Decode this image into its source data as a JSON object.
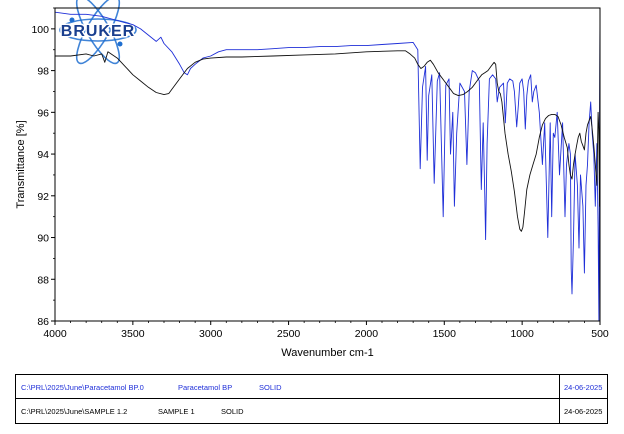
{
  "chart_data": {
    "type": "line",
    "title": "",
    "xlabel": "Wavenumber cm-1",
    "ylabel": "Transmittance [%]",
    "xlim": [
      4000,
      500
    ],
    "ylim": [
      86,
      101
    ],
    "x_ticks": [
      4000,
      3500,
      3000,
      2500,
      2000,
      1500,
      1000,
      500
    ],
    "y_ticks": [
      86,
      88,
      90,
      92,
      94,
      96,
      98,
      100
    ],
    "grid": false,
    "logo": "BRUKER",
    "series": [
      {
        "name": "Paracetamol BP",
        "color": "#1f2fd8",
        "points": [
          [
            4000,
            100.8
          ],
          [
            3900,
            100.7
          ],
          [
            3800,
            100.7
          ],
          [
            3700,
            100.6
          ],
          [
            3600,
            100.4
          ],
          [
            3500,
            100.2
          ],
          [
            3450,
            100.0
          ],
          [
            3400,
            99.7
          ],
          [
            3350,
            99.4
          ],
          [
            3320,
            99.6
          ],
          [
            3300,
            99.3
          ],
          [
            3250,
            98.9
          ],
          [
            3200,
            98.3
          ],
          [
            3170,
            97.9
          ],
          [
            3150,
            97.8
          ],
          [
            3130,
            98.1
          ],
          [
            3100,
            98.3
          ],
          [
            3050,
            98.6
          ],
          [
            3000,
            98.7
          ],
          [
            2950,
            98.9
          ],
          [
            2900,
            99.0
          ],
          [
            2800,
            99.0
          ],
          [
            2700,
            99.0
          ],
          [
            2600,
            99.05
          ],
          [
            2500,
            99.1
          ],
          [
            2400,
            99.1
          ],
          [
            2300,
            99.15
          ],
          [
            2200,
            99.15
          ],
          [
            2100,
            99.2
          ],
          [
            2000,
            99.2
          ],
          [
            1900,
            99.25
          ],
          [
            1800,
            99.3
          ],
          [
            1700,
            99.35
          ],
          [
            1670,
            99.0
          ],
          [
            1655,
            93.3
          ],
          [
            1640,
            97.2
          ],
          [
            1620,
            98.2
          ],
          [
            1610,
            93.7
          ],
          [
            1600,
            96.8
          ],
          [
            1580,
            97.8
          ],
          [
            1565,
            92.6
          ],
          [
            1545,
            97.5
          ],
          [
            1530,
            97.9
          ],
          [
            1507,
            91.0
          ],
          [
            1490,
            97.3
          ],
          [
            1470,
            97.6
          ],
          [
            1460,
            94.0
          ],
          [
            1445,
            96.0
          ],
          [
            1435,
            91.5
          ],
          [
            1420,
            95.0
          ],
          [
            1400,
            97.4
          ],
          [
            1370,
            97.0
          ],
          [
            1355,
            93.5
          ],
          [
            1340,
            97.0
          ],
          [
            1320,
            98.0
          ],
          [
            1300,
            97.9
          ],
          [
            1275,
            97.5
          ],
          [
            1262,
            92.3
          ],
          [
            1250,
            95.5
          ],
          [
            1240,
            92.0
          ],
          [
            1235,
            89.9
          ],
          [
            1225,
            94.5
          ],
          [
            1210,
            97.6
          ],
          [
            1190,
            97.8
          ],
          [
            1170,
            97.6
          ],
          [
            1160,
            96.5
          ],
          [
            1145,
            97.2
          ],
          [
            1120,
            97.4
          ],
          [
            1108,
            95.5
          ],
          [
            1095,
            97.4
          ],
          [
            1080,
            97.6
          ],
          [
            1060,
            97.5
          ],
          [
            1050,
            97.0
          ],
          [
            1035,
            95.3
          ],
          [
            1025,
            96.3
          ],
          [
            1015,
            97.4
          ],
          [
            1000,
            97.6
          ],
          [
            990,
            97.0
          ],
          [
            980,
            95.2
          ],
          [
            970,
            96.8
          ],
          [
            960,
            97.5
          ],
          [
            945,
            97.8
          ],
          [
            935,
            96.5
          ],
          [
            925,
            97.0
          ],
          [
            910,
            97.3
          ],
          [
            890,
            96.0
          ],
          [
            870,
            93.5
          ],
          [
            855,
            95.5
          ],
          [
            835,
            90.0
          ],
          [
            820,
            95.5
          ],
          [
            810,
            91.0
          ],
          [
            800,
            95.0
          ],
          [
            790,
            94.8
          ],
          [
            775,
            96.0
          ],
          [
            760,
            93.0
          ],
          [
            740,
            95.5
          ],
          [
            725,
            91.0
          ],
          [
            715,
            93.5
          ],
          [
            700,
            94.5
          ],
          [
            690,
            94.0
          ],
          [
            685,
            88.5
          ],
          [
            680,
            87.3
          ],
          [
            670,
            90.0
          ],
          [
            660,
            94.0
          ],
          [
            645,
            92.5
          ],
          [
            635,
            89.5
          ],
          [
            625,
            93.0
          ],
          [
            610,
            91.5
          ],
          [
            600,
            88.3
          ],
          [
            590,
            92.5
          ],
          [
            580,
            93.5
          ],
          [
            570,
            95.5
          ],
          [
            560,
            96.5
          ],
          [
            550,
            95.0
          ],
          [
            540,
            94.0
          ],
          [
            530,
            91.5
          ],
          [
            520,
            94.5
          ],
          [
            512,
            90.5
          ],
          [
            507,
            86.0
          ],
          [
            503,
            94.0
          ],
          [
            500,
            100.9
          ]
        ]
      },
      {
        "name": "SAMPLE 1",
        "color": "#111111",
        "points": [
          [
            4000,
            98.7
          ],
          [
            3900,
            98.7
          ],
          [
            3800,
            98.8
          ],
          [
            3750,
            98.7
          ],
          [
            3700,
            98.8
          ],
          [
            3680,
            98.4
          ],
          [
            3660,
            98.9
          ],
          [
            3600,
            98.6
          ],
          [
            3550,
            98.2
          ],
          [
            3500,
            97.8
          ],
          [
            3450,
            97.5
          ],
          [
            3400,
            97.2
          ],
          [
            3350,
            96.95
          ],
          [
            3300,
            96.85
          ],
          [
            3270,
            96.9
          ],
          [
            3250,
            97.1
          ],
          [
            3200,
            97.6
          ],
          [
            3150,
            98.1
          ],
          [
            3100,
            98.4
          ],
          [
            3050,
            98.55
          ],
          [
            3000,
            98.6
          ],
          [
            2900,
            98.65
          ],
          [
            2800,
            98.65
          ],
          [
            2600,
            98.7
          ],
          [
            2400,
            98.75
          ],
          [
            2200,
            98.8
          ],
          [
            2000,
            98.9
          ],
          [
            1800,
            98.95
          ],
          [
            1750,
            98.95
          ],
          [
            1720,
            98.8
          ],
          [
            1690,
            98.6
          ],
          [
            1670,
            98.3
          ],
          [
            1650,
            98.1
          ],
          [
            1630,
            98.2
          ],
          [
            1610,
            98.4
          ],
          [
            1590,
            98.5
          ],
          [
            1570,
            98.3
          ],
          [
            1540,
            97.9
          ],
          [
            1500,
            97.5
          ],
          [
            1470,
            97.2
          ],
          [
            1440,
            96.9
          ],
          [
            1410,
            96.8
          ],
          [
            1380,
            96.85
          ],
          [
            1350,
            97.0
          ],
          [
            1320,
            97.2
          ],
          [
            1300,
            97.4
          ],
          [
            1280,
            97.6
          ],
          [
            1260,
            97.8
          ],
          [
            1240,
            97.9
          ],
          [
            1220,
            98.0
          ],
          [
            1200,
            98.2
          ],
          [
            1180,
            98.4
          ],
          [
            1170,
            98.3
          ],
          [
            1160,
            97.4
          ],
          [
            1150,
            97.0
          ],
          [
            1140,
            96.9
          ],
          [
            1130,
            96.5
          ],
          [
            1110,
            95.0
          ],
          [
            1090,
            94.0
          ],
          [
            1070,
            93.2
          ],
          [
            1050,
            92.2
          ],
          [
            1030,
            91.0
          ],
          [
            1015,
            90.4
          ],
          [
            1005,
            90.3
          ],
          [
            995,
            90.5
          ],
          [
            985,
            91.2
          ],
          [
            970,
            92.3
          ],
          [
            950,
            93.0
          ],
          [
            930,
            93.5
          ],
          [
            910,
            94.0
          ],
          [
            890,
            94.8
          ],
          [
            870,
            95.4
          ],
          [
            850,
            95.7
          ],
          [
            830,
            95.85
          ],
          [
            810,
            95.9
          ],
          [
            790,
            95.9
          ],
          [
            770,
            95.8
          ],
          [
            750,
            95.4
          ],
          [
            730,
            94.8
          ],
          [
            710,
            94.3
          ],
          [
            700,
            93.5
          ],
          [
            690,
            93.0
          ],
          [
            680,
            92.8
          ],
          [
            670,
            93.5
          ],
          [
            660,
            94.0
          ],
          [
            650,
            94.4
          ],
          [
            640,
            94.8
          ],
          [
            630,
            95.0
          ],
          [
            620,
            94.6
          ],
          [
            610,
            94.4
          ],
          [
            600,
            94.2
          ],
          [
            590,
            95.0
          ],
          [
            580,
            95.4
          ],
          [
            570,
            95.6
          ],
          [
            560,
            95.8
          ],
          [
            550,
            95.2
          ],
          [
            540,
            94.4
          ],
          [
            530,
            93.5
          ],
          [
            520,
            92.5
          ],
          [
            512,
            96.0
          ],
          [
            508,
            95.2
          ],
          [
            503,
            91.5
          ],
          [
            500,
            100.9
          ]
        ]
      }
    ]
  },
  "legend": {
    "rows": [
      {
        "path": "C:\\PRL\\2025\\June\\Paracetamol BP.0",
        "name": "Paracetamol BP",
        "state": "SOLID",
        "date": "24-06-2025"
      },
      {
        "path": "C:\\PRL\\2025\\June\\SAMPLE 1.2",
        "name": "SAMPLE 1",
        "state": "SOLID",
        "date": "24-06-2025"
      }
    ]
  }
}
